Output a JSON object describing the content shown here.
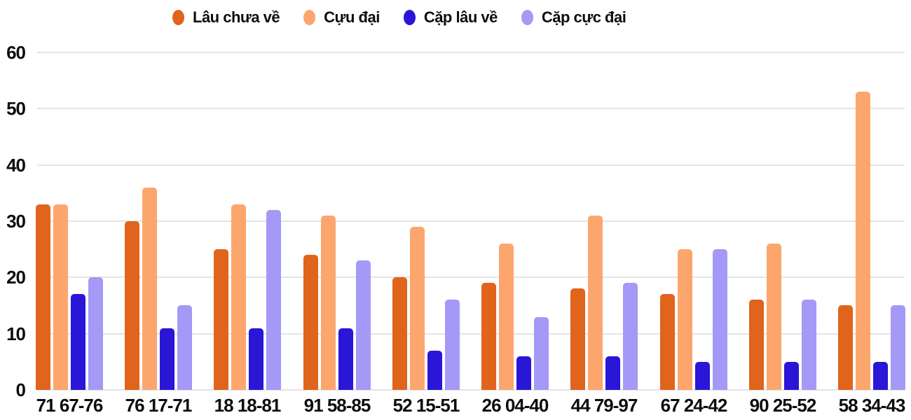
{
  "chart_data": {
    "type": "bar",
    "categories": [
      "71 67-76",
      "76 17-71",
      "18 18-81",
      "91 58-85",
      "52 15-51",
      "26 04-40",
      "44 79-97",
      "67 24-42",
      "90 25-52",
      "58 34-43"
    ],
    "series": [
      {
        "name": "Lâu chưa về",
        "color": "#E0641C",
        "values": [
          33,
          30,
          25,
          24,
          20,
          19,
          18,
          17,
          16,
          15
        ]
      },
      {
        "name": "Cựu đại",
        "color": "#FCA66E",
        "values": [
          33,
          36,
          33,
          31,
          29,
          26,
          31,
          25,
          26,
          53
        ]
      },
      {
        "name": "Cặp lâu về",
        "color": "#2916D6",
        "values": [
          17,
          11,
          11,
          11,
          7,
          6,
          6,
          5,
          5,
          5
        ]
      },
      {
        "name": "Cặp cực đại",
        "color": "#A499F7",
        "values": [
          20,
          15,
          32,
          23,
          16,
          13,
          19,
          25,
          16,
          15
        ]
      }
    ],
    "title": "",
    "xlabel": "",
    "ylabel": "",
    "ylim": [
      0,
      60
    ],
    "yticks": [
      0,
      10,
      20,
      30,
      40,
      50,
      60
    ],
    "grid": true,
    "legend_position": "top",
    "background": "#FFFFFF",
    "gridline_color": "#E4E4E4",
    "text_color": "#0d0d0d"
  }
}
